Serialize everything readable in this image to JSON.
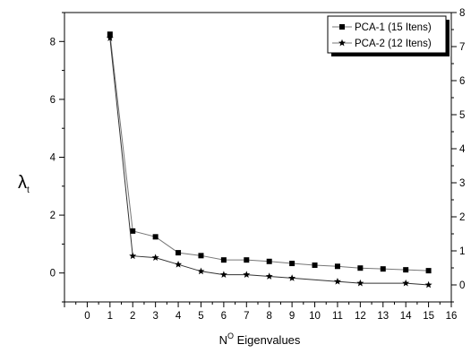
{
  "chart_data": {
    "type": "line",
    "xlabel_main": "N",
    "xlabel_sup": "O",
    "xlabel_rest": " Eigenvalues",
    "ylabel_main": "λ",
    "ylabel_sub": "t",
    "xlim": [
      -1,
      16
    ],
    "ylim_left": [
      -1,
      9
    ],
    "ylim_right": [
      -0.5,
      8
    ],
    "xticks": [
      0,
      1,
      2,
      3,
      4,
      5,
      6,
      7,
      8,
      9,
      10,
      11,
      12,
      13,
      14,
      15,
      16
    ],
    "yticks_left": [
      0,
      2,
      4,
      6,
      8
    ],
    "yticks_right": [
      0,
      1,
      2,
      3,
      4,
      5,
      6,
      7,
      8
    ],
    "grid": false,
    "legend_position": "top-right",
    "series": [
      {
        "name": "PCA-1 (15 Itens)",
        "axis": "left",
        "marker": "square",
        "x": [
          1,
          2,
          3,
          4,
          5,
          6,
          7,
          8,
          9,
          10,
          11,
          12,
          13,
          14,
          15
        ],
        "values": [
          8.25,
          1.45,
          1.25,
          0.7,
          0.6,
          0.45,
          0.45,
          0.4,
          0.33,
          0.27,
          0.23,
          0.17,
          0.14,
          0.11,
          0.08
        ]
      },
      {
        "name": "PCA-2 (12 Itens)",
        "axis": "right",
        "marker": "star",
        "x": [
          1,
          2,
          3,
          4,
          5,
          6,
          7,
          8,
          9,
          10,
          11,
          12,
          13,
          14,
          15
        ],
        "values": [
          7.25,
          0.85,
          0.8,
          0.6,
          0.4,
          0.3,
          0.3,
          0.25,
          0.2,
          null,
          0.1,
          0.05,
          null,
          0.05,
          0.0
        ]
      }
    ]
  }
}
